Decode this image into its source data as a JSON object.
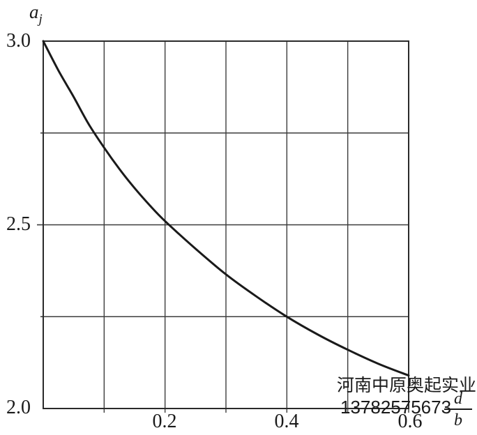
{
  "chart_data": {
    "type": "line",
    "title": "",
    "ylabel": {
      "base": "a",
      "subscript": "j"
    },
    "xlabel_fraction": {
      "numerator": "d",
      "denominator": "b"
    },
    "xlim": [
      0,
      0.6
    ],
    "ylim": [
      2.0,
      3.0
    ],
    "grid": true,
    "x_gridlines": [
      0,
      0.1,
      0.2,
      0.3,
      0.4,
      0.5,
      0.6
    ],
    "y_gridlines": [
      2.0,
      2.25,
      2.5,
      2.75,
      3.0
    ],
    "x_ticks": [
      {
        "value": 0.2,
        "label": "0.2"
      },
      {
        "value": 0.4,
        "label": "0.4"
      },
      {
        "value": 0.6,
        "label": "0.6"
      }
    ],
    "y_ticks": [
      {
        "value": 3.0,
        "label": "3.0"
      },
      {
        "value": 2.5,
        "label": "2.5"
      },
      {
        "value": 2.0,
        "label": "2.0"
      }
    ],
    "series": [
      {
        "name": "aj-vs-db-curve",
        "points": [
          [
            0.0,
            3.0
          ],
          [
            0.025,
            2.92
          ],
          [
            0.05,
            2.848
          ],
          [
            0.075,
            2.773
          ],
          [
            0.1,
            2.71
          ],
          [
            0.125,
            2.652
          ],
          [
            0.15,
            2.6
          ],
          [
            0.175,
            2.553
          ],
          [
            0.2,
            2.51
          ],
          [
            0.25,
            2.435
          ],
          [
            0.3,
            2.365
          ],
          [
            0.35,
            2.305
          ],
          [
            0.4,
            2.25
          ],
          [
            0.45,
            2.202
          ],
          [
            0.5,
            2.16
          ],
          [
            0.55,
            2.122
          ],
          [
            0.6,
            2.09
          ]
        ]
      }
    ],
    "colors": {
      "background": "#ffffff",
      "grid": "#3c3c3c",
      "border": "#2a2a2a",
      "curve": "#1a1a1a",
      "text": "#1a1a1a"
    }
  },
  "watermark": {
    "line1": "河南中原奥起实业",
    "line2": "13782575673"
  }
}
